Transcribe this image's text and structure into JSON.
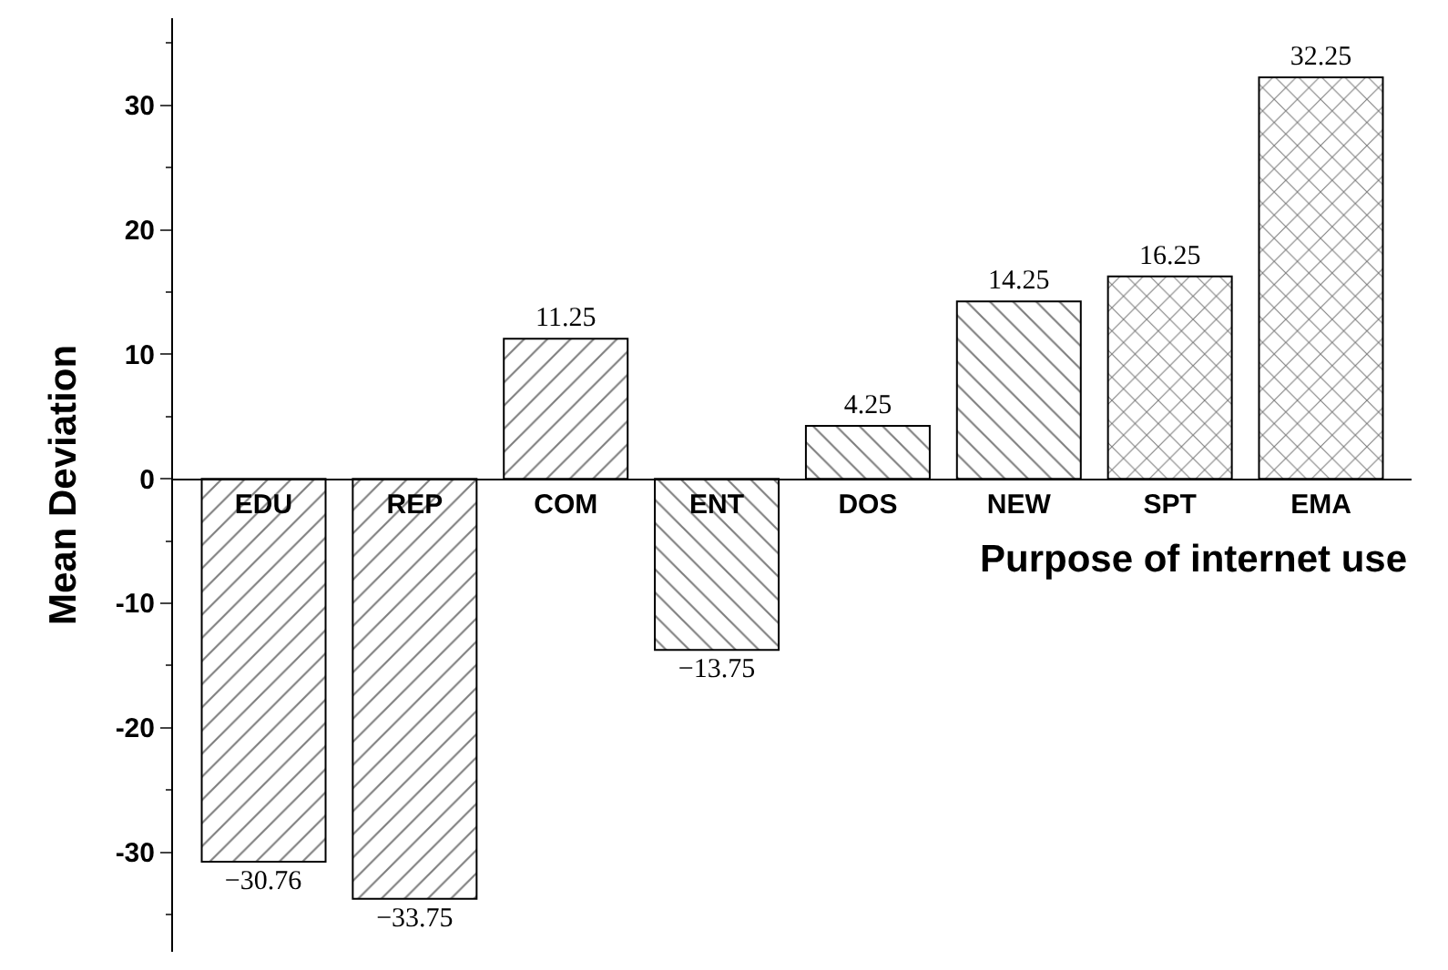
{
  "chart_data": {
    "type": "bar",
    "xlabel": "Purpose of internet use",
    "ylabel": "Mean Deviation",
    "categories": [
      "EDU",
      "REP",
      "COM",
      "ENT",
      "DOS",
      "NEW",
      "SPT",
      "EMA"
    ],
    "values": [
      -30.76,
      -33.75,
      11.25,
      -13.75,
      4.25,
      14.25,
      16.25,
      32.25
    ],
    "value_labels": [
      "−30.76",
      "−33.75",
      "11.25",
      "−13.75",
      "4.25",
      "14.25",
      "16.25",
      "32.25"
    ],
    "color": "#000000",
    "ylim": [
      -38,
      37
    ],
    "yticks": [
      -30,
      -20,
      -10,
      0,
      10,
      20,
      30
    ],
    "legend": false
  }
}
